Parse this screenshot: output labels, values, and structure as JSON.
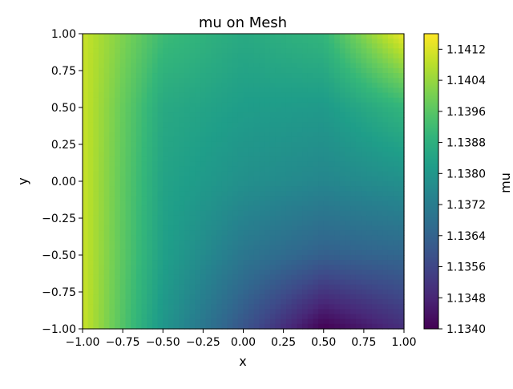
{
  "chart_data": {
    "type": "heatmap",
    "title": "mu on Mesh",
    "xlabel": "x",
    "ylabel": "y",
    "xlim": [
      -1.0,
      1.0
    ],
    "ylim": [
      -1.0,
      1.0
    ],
    "x_ticks": [
      "−1.00",
      "−0.75",
      "−0.50",
      "−0.25",
      "0.00",
      "0.25",
      "0.50",
      "0.75",
      "1.00"
    ],
    "y_ticks": [
      "−1.00",
      "−0.75",
      "−0.50",
      "−0.25",
      "0.00",
      "0.25",
      "0.50",
      "0.75",
      "1.00"
    ],
    "colormap": "viridis",
    "colorbar": {
      "label": "mu",
      "min": 1.134,
      "max": 1.1416,
      "ticks": [
        "1.1340",
        "1.1348",
        "1.1356",
        "1.1364",
        "1.1372",
        "1.1380",
        "1.1388",
        "1.1396",
        "1.1404",
        "1.1412"
      ]
    },
    "field": {
      "x": [
        -1.0,
        -0.5,
        0.0,
        0.5,
        1.0
      ],
      "y": [
        1.0,
        0.5,
        0.0,
        -0.5,
        -1.0
      ],
      "values": [
        [
          1.141,
          1.1392,
          1.1386,
          1.139,
          1.1414
        ],
        [
          1.141,
          1.1386,
          1.1382,
          1.1381,
          1.139
        ],
        [
          1.141,
          1.1384,
          1.1378,
          1.1375,
          1.1378
        ],
        [
          1.141,
          1.1383,
          1.137,
          1.1363,
          1.1365
        ],
        [
          1.141,
          1.138,
          1.136,
          1.134,
          1.135
        ]
      ]
    }
  }
}
